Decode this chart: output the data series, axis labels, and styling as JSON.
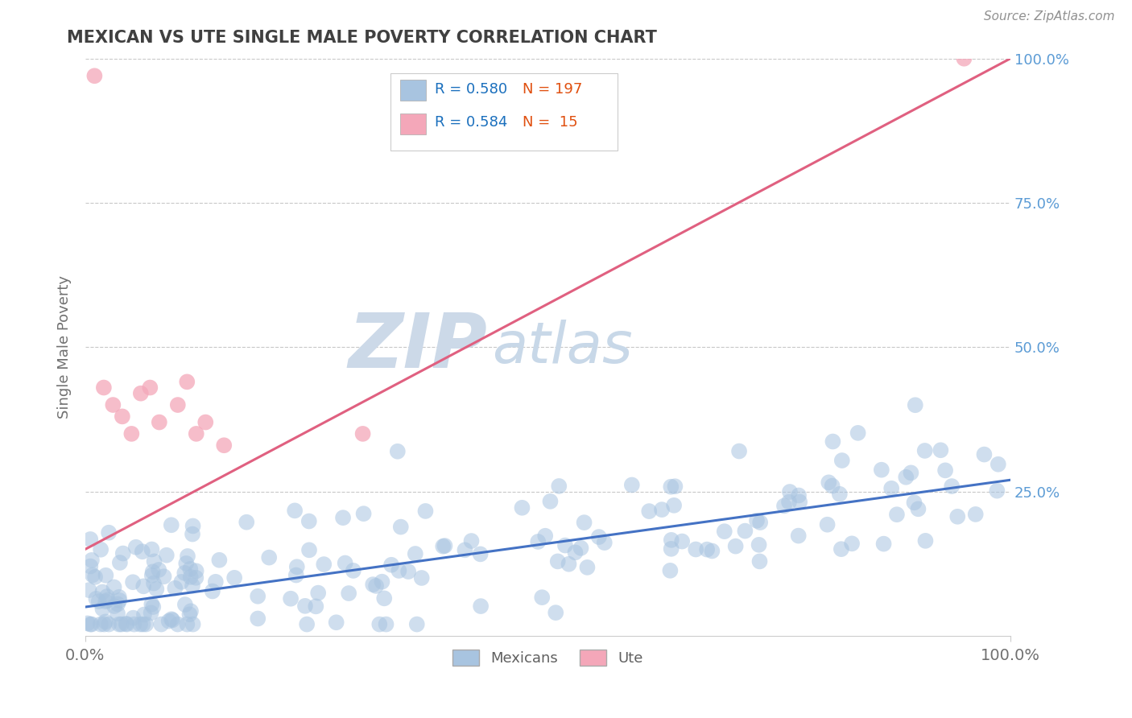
{
  "title": "MEXICAN VS UTE SINGLE MALE POVERTY CORRELATION CHART",
  "source": "Source: ZipAtlas.com",
  "ylabel": "Single Male Poverty",
  "xlim": [
    0.0,
    1.0
  ],
  "ylim": [
    0.0,
    1.0
  ],
  "y_tick_labels_right": [
    "100.0%",
    "75.0%",
    "50.0%",
    "25.0%"
  ],
  "y_tick_positions_right": [
    1.0,
    0.75,
    0.5,
    0.25
  ],
  "mexican_R": 0.58,
  "mexican_N": 197,
  "ute_R": 0.584,
  "ute_N": 15,
  "mexican_color": "#a8c4e0",
  "ute_color": "#f4a7b9",
  "mexican_line_color": "#4472c4",
  "ute_line_color": "#e06080",
  "title_color": "#404040",
  "axis_label_color": "#5b9bd5",
  "background_color": "#ffffff",
  "grid_color": "#c8c8c8",
  "watermark_zip_color": "#ccd9e8",
  "watermark_atlas_color": "#c8d8e8",
  "legend_R_color": "#1a6fbd",
  "legend_N_color": "#e05010",
  "seed": 42,
  "x_ute": [
    0.01,
    0.02,
    0.03,
    0.04,
    0.05,
    0.06,
    0.07,
    0.08,
    0.1,
    0.11,
    0.12,
    0.13,
    0.15,
    0.3,
    0.95
  ],
  "y_ute": [
    0.97,
    0.43,
    0.4,
    0.38,
    0.35,
    0.42,
    0.43,
    0.37,
    0.4,
    0.44,
    0.35,
    0.37,
    0.33,
    0.35,
    1.0
  ],
  "mex_line_x0": 0.0,
  "mex_line_y0": 0.05,
  "mex_line_x1": 1.0,
  "mex_line_y1": 0.27,
  "ute_line_x0": 0.0,
  "ute_line_y0": 0.15,
  "ute_line_x1": 1.0,
  "ute_line_y1": 1.0
}
